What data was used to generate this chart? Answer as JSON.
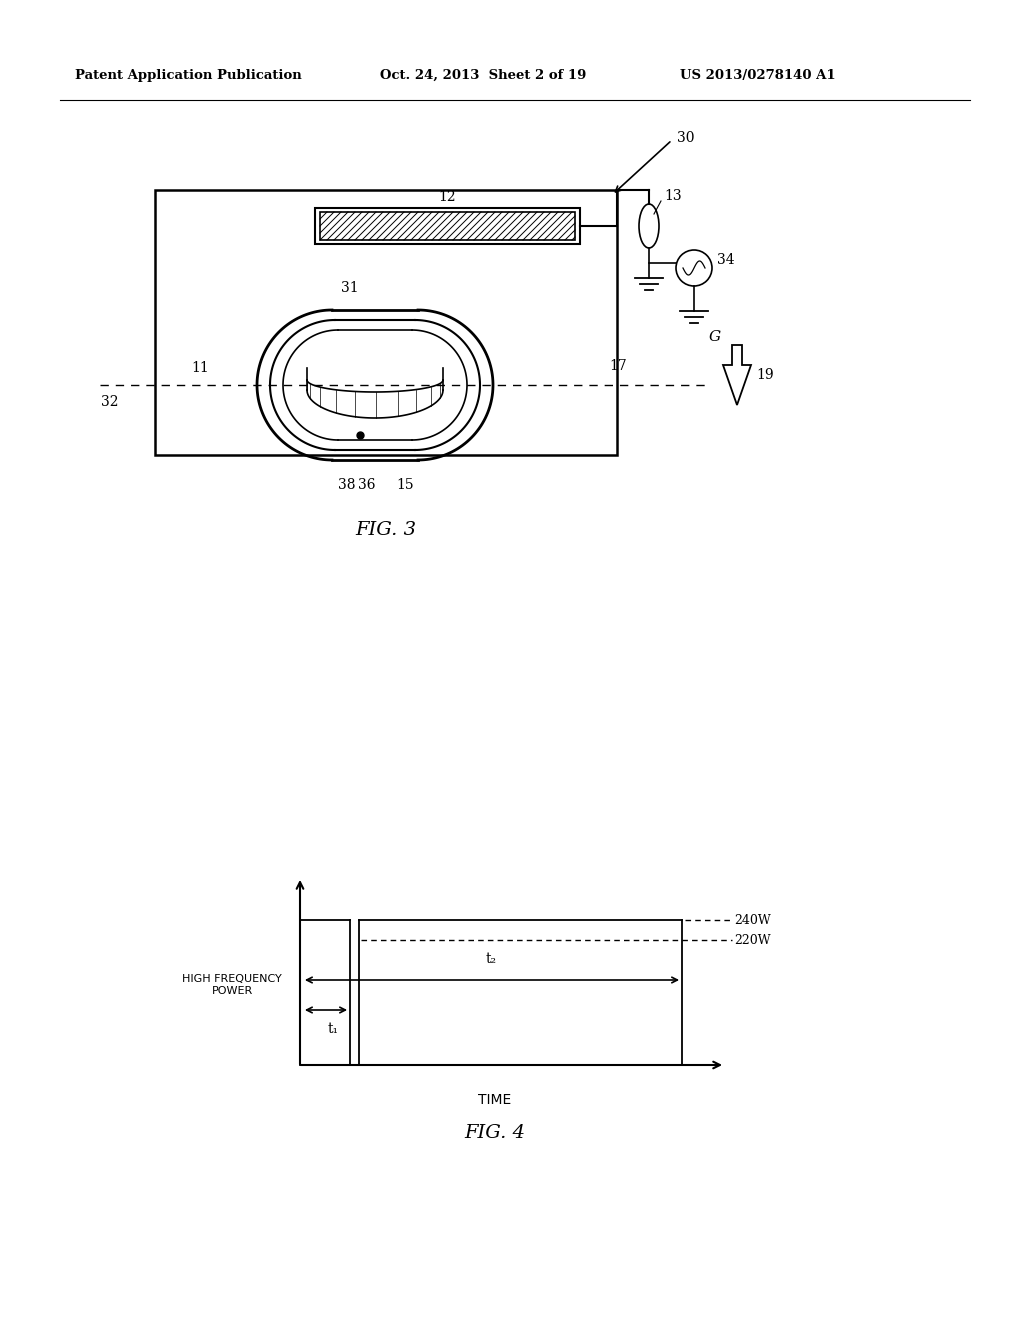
{
  "bg_color": "#ffffff",
  "header_left": "Patent Application Publication",
  "header_mid": "Oct. 24, 2013  Sheet 2 of 19",
  "header_right": "US 2013/0278140 A1",
  "fig3_label": "FIG. 3",
  "fig4_label": "FIG. 4",
  "label_30": "30",
  "label_12": "12",
  "label_13": "13",
  "label_34": "34",
  "label_31": "31",
  "label_32": "32",
  "label_11": "11",
  "label_17": "17",
  "label_38": "38",
  "label_36": "36",
  "label_15": "15",
  "label_19": "19",
  "label_G": "G",
  "label_240W": "240W",
  "label_220W": "220W",
  "label_hfp": "HIGH FREQUENCY\nPOWER",
  "label_time": "TIME",
  "label_t1": "t₁",
  "label_t2": "t₂"
}
